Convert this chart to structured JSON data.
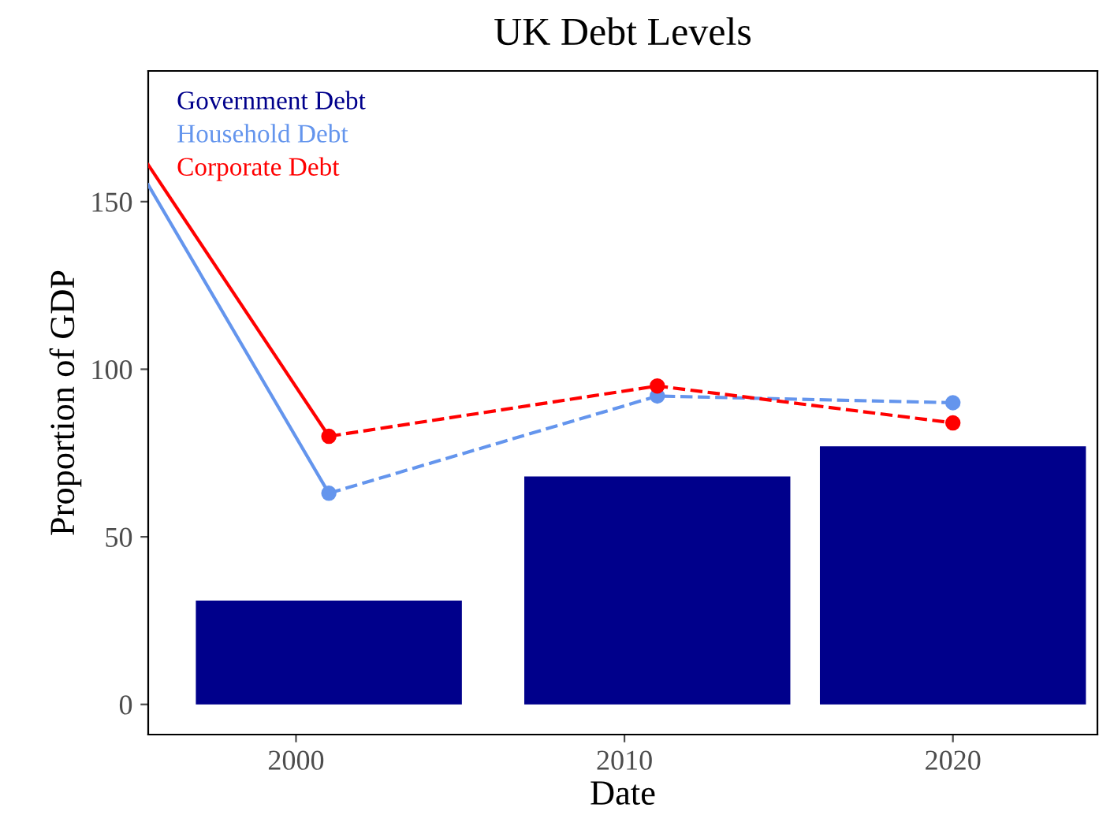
{
  "chart_data": {
    "type": "bar",
    "title": "UK Debt Levels",
    "xlabel": "Date",
    "ylabel": "Proportion of GDP",
    "xlim": [
      1995.5,
      2024.4
    ],
    "ylim": [
      -9,
      189
    ],
    "xticks": [
      2000,
      2010,
      2020
    ],
    "yticks": [
      0,
      50,
      100,
      150
    ],
    "grid": false,
    "legend": "top left",
    "series": [
      {
        "name": "Government Debt",
        "color": "#00008b",
        "x": [
          2001,
          2011,
          2020
        ],
        "values": [
          31,
          68,
          77
        ]
      },
      {
        "name": "Household Debt",
        "type": "line",
        "color": "#6495ed",
        "x": [
          2001,
          2011,
          2020
        ],
        "values": [
          63,
          92,
          90
        ],
        "line_style": "dashed",
        "marker": "circle"
      },
      {
        "name": "Corporate Debt",
        "type": "line",
        "color": "#ff0000",
        "x": [
          2001,
          2011,
          2020
        ],
        "values": [
          80,
          95,
          84
        ],
        "line_style": "dashed",
        "marker": "circle"
      },
      {
        "type": "line",
        "color": "#6495ed",
        "x": [
          1995.5,
          2001
        ],
        "values": [
          155,
          63
        ],
        "line_style": "solid",
        "marker": "none"
      },
      {
        "type": "line",
        "color": "#ff0000",
        "x": [
          1995.5,
          2001
        ],
        "values": [
          161,
          80
        ],
        "line_style": "solid",
        "marker": "none"
      }
    ]
  }
}
